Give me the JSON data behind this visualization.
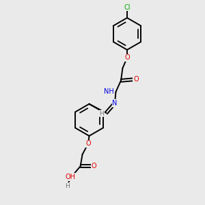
{
  "background_color": "#eaeaea",
  "atom_colors": {
    "C": "#000000",
    "H": "#707070",
    "N": "#0000e0",
    "O": "#e00000",
    "Cl": "#00aa00"
  },
  "bond_color": "#000000",
  "bond_lw": 1.4,
  "font_size": 6.5,
  "fig_width": 3.0,
  "fig_height": 3.0,
  "dpi": 100
}
